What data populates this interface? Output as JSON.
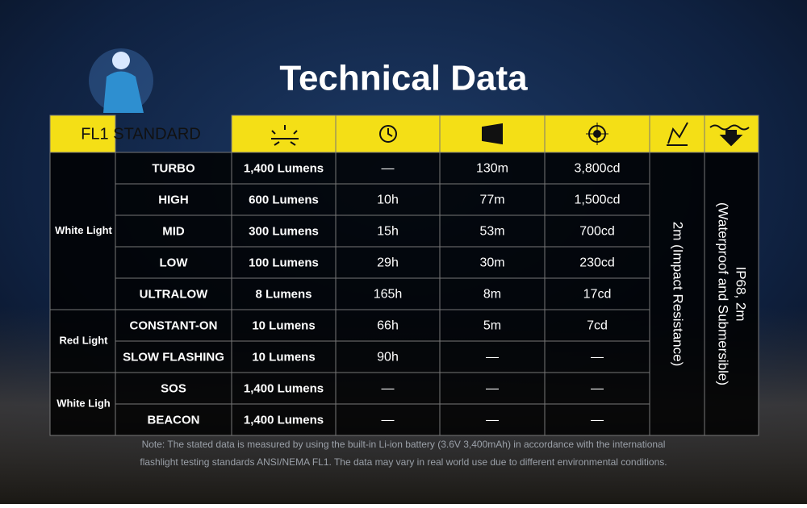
{
  "title": "Technical Data",
  "table": {
    "header": "FL1 STANDARD",
    "groups": [
      {
        "label": "White Light",
        "rows": [
          [
            "TURBO",
            "1,400 Lumens",
            "—",
            "130m",
            "3,800cd"
          ],
          [
            "HIGH",
            "600 Lumens",
            "10h",
            "77m",
            "1,500cd"
          ],
          [
            "MID",
            "300 Lumens",
            "15h",
            "53m",
            "700cd"
          ],
          [
            "LOW",
            "100 Lumens",
            "29h",
            "30m",
            "230cd"
          ],
          [
            "ULTRALOW",
            "8 Lumens",
            "165h",
            "8m",
            "17cd"
          ]
        ]
      },
      {
        "label": "Red Light",
        "rows": [
          [
            "CONSTANT-ON",
            "10 Lumens",
            "66h",
            "5m",
            "7cd"
          ],
          [
            "SLOW FLASHING",
            "10 Lumens",
            "90h",
            "—",
            "—"
          ]
        ]
      },
      {
        "label": "White Ligh",
        "rows": [
          [
            "SOS",
            "1,400 Lumens",
            "—",
            "—",
            "—"
          ],
          [
            "BEACON",
            "1,400 Lumens",
            "—",
            "—",
            "—"
          ]
        ]
      }
    ],
    "impact": "2m (Impact Resistance)",
    "waterproof": [
      "IP68, 2m",
      "(Waterproof and Submersible)"
    ]
  },
  "note": [
    "Note: The stated data is measured by using the built-in Li-ion battery (3.6V 3,400mAh) in accordance with the international",
    "flashlight testing standards ANSI/NEMA FL1. The data may vary in real world use due to different environmental conditions."
  ]
}
